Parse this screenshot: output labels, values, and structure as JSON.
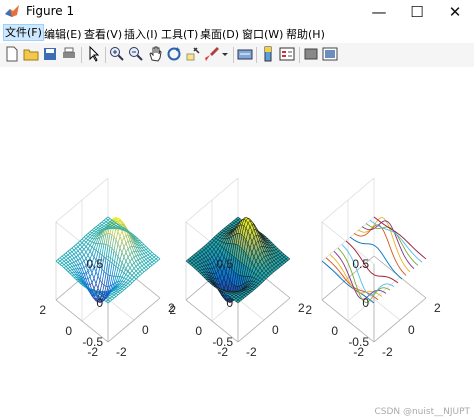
{
  "window": {
    "title": "Figure 1"
  },
  "window_controls": {
    "minimize": "—",
    "maximize": "☐",
    "close": "✕"
  },
  "menus": [
    "文件(F)",
    "编辑(E)",
    "查看(V)",
    "插入(I)",
    "工具(T)",
    "桌面(D)",
    "窗口(W)",
    "帮助(H)"
  ],
  "toolbar": [
    "new-figure-icon",
    "open-icon",
    "save-icon",
    "print-icon",
    "pointer-icon",
    "zoom-in-icon",
    "zoom-out-icon",
    "pan-icon",
    "rotate-3d-icon",
    "data-cursor-icon",
    "brush-icon",
    "link-plot-icon",
    "colorbar-icon",
    "legend-icon",
    "hide-plot-tools-icon",
    "show-plot-tools-icon"
  ],
  "axes": [
    {
      "style": "mesh-parula-colored",
      "zticks": [
        "0.5",
        "0",
        "-0.5"
      ],
      "yticks": [
        "2",
        "0",
        "-2"
      ],
      "xticks": [
        "-2",
        "0",
        "2"
      ]
    },
    {
      "style": "surf-parula-black-edges",
      "zticks": [
        "0.5",
        "0",
        "-0.5"
      ],
      "yticks": [
        "2",
        "0",
        "-2"
      ],
      "xticks": [
        "-2",
        "0",
        "2"
      ]
    },
    {
      "style": "waterfall-lines",
      "zticks": [
        "0.5",
        "0",
        "-0.5"
      ],
      "yticks": [
        "2",
        "0",
        "-2"
      ],
      "xticks": [
        "-2",
        "0",
        "2"
      ]
    }
  ],
  "watermark": "CSDN @nuist__NJUPT"
}
